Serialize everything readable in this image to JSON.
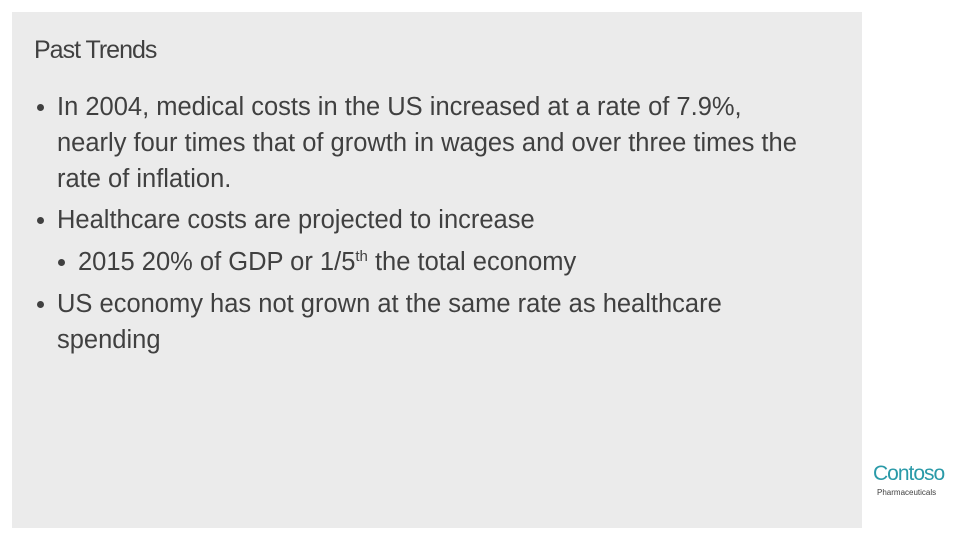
{
  "slide": {
    "title": "Past Trends",
    "bullets": [
      {
        "text": "In 2004, medical costs in the US increased at a rate of 7.9%, nearly four times that of growth in wages and over three times the rate of inflation."
      },
      {
        "text": "Healthcare costs are projected to increase",
        "sub": {
          "before": "2015 20% of GDP or 1/5",
          "sup": "th",
          "after": " the total economy"
        }
      },
      {
        "text": "US economy has not grown at the same rate as healthcare spending"
      }
    ],
    "logo": {
      "name": "Contoso",
      "tagline": "Pharmaceuticals"
    }
  }
}
